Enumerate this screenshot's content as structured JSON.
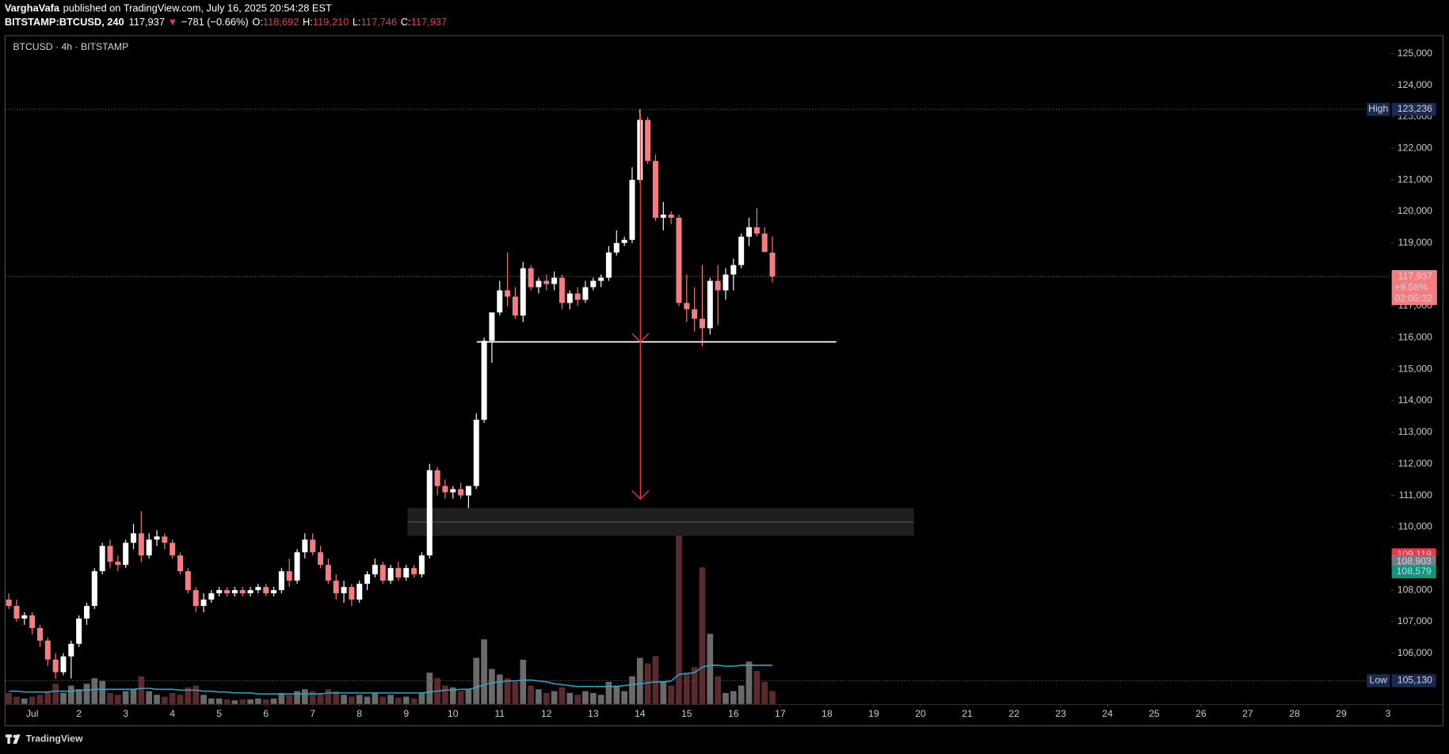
{
  "header": {
    "author": "VarghaVafa",
    "published": "published on TradingView.com, July 16, 2025 20:54:28 EST",
    "symbol": "BITSTAMP:BTCUSD, 240",
    "last": "117,937",
    "arrow": "▼",
    "change": "−781 (−0.66%)",
    "ohlc": [
      {
        "key": "O:",
        "value": "118,692"
      },
      {
        "key": "H:",
        "value": "119,210"
      },
      {
        "key": "L:",
        "value": "117,746"
      },
      {
        "key": "C:",
        "value": "117,937"
      }
    ]
  },
  "footer": {
    "brand": "TradingView"
  },
  "chart_data": {
    "type": "candlestick",
    "title": "BTCUSD · 4h · BITSTAMP",
    "up_color": "#ffffff",
    "down_color": "#f77c80",
    "volume_up_color": "#6a6a6a",
    "volume_down_color": "#5a2a2e",
    "volume_ma_color": "#26a9cf",
    "grid": false,
    "xlim": [
      0.43,
      30.06
    ],
    "ylim": [
      104390,
      125585
    ],
    "xticks": [
      {
        "value": 1,
        "label": "Jul"
      },
      2,
      3,
      4,
      5,
      6,
      7,
      8,
      9,
      10,
      11,
      12,
      13,
      14,
      15,
      16,
      17,
      18,
      19,
      20,
      21,
      22,
      23,
      24,
      25,
      26,
      27,
      28,
      29,
      {
        "value": 30,
        "label": "3"
      }
    ],
    "yticks": [
      {
        "value": 106000,
        "label": "106,000"
      },
      {
        "value": 107000,
        "label": "107,000"
      },
      {
        "value": 108000,
        "label": "108,000"
      },
      {
        "value": 109000,
        "label": "109,000"
      },
      {
        "value": 110000,
        "label": "110,000"
      },
      {
        "value": 111000,
        "label": "111,000"
      },
      {
        "value": 112000,
        "label": "112,000"
      },
      {
        "value": 113000,
        "label": "113,000"
      },
      {
        "value": 114000,
        "label": "114,000"
      },
      {
        "value": 115000,
        "label": "115,000"
      },
      {
        "value": 116000,
        "label": "116,000"
      },
      {
        "value": 117000,
        "label": "117,000"
      },
      {
        "value": 118000,
        "label": "118,000"
      },
      {
        "value": 119000,
        "label": "119,000"
      },
      {
        "value": 120000,
        "label": "120,000"
      },
      {
        "value": 121000,
        "label": "121,000"
      },
      {
        "value": 122000,
        "label": "122,000"
      },
      {
        "value": 123000,
        "label": "123,000"
      },
      {
        "value": 124000,
        "label": "124,000"
      },
      {
        "value": 125000,
        "label": "125,000"
      }
    ],
    "x": [
      0.5,
      0.667,
      0.833,
      1,
      1.167,
      1.333,
      1.5,
      1.667,
      1.833,
      2,
      2.167,
      2.333,
      2.5,
      2.667,
      2.833,
      3,
      3.167,
      3.333,
      3.5,
      3.667,
      3.833,
      4,
      4.167,
      4.333,
      4.5,
      4.667,
      4.833,
      5,
      5.167,
      5.333,
      5.5,
      5.667,
      5.833,
      6,
      6.167,
      6.333,
      6.5,
      6.667,
      6.833,
      7,
      7.167,
      7.333,
      7.5,
      7.667,
      7.833,
      8,
      8.167,
      8.333,
      8.5,
      8.667,
      8.833,
      9,
      9.167,
      9.333,
      9.5,
      9.667,
      9.833,
      10,
      10.167,
      10.333,
      10.5,
      10.667,
      10.833,
      11,
      11.167,
      11.333,
      11.5,
      11.667,
      11.833,
      12,
      12.167,
      12.333,
      12.5,
      12.667,
      12.833,
      13,
      13.167,
      13.333,
      13.5,
      13.667,
      13.833,
      14,
      14.167,
      14.333,
      14.5,
      14.667,
      14.833,
      15,
      15.167,
      15.333,
      15.5,
      15.667,
      15.833,
      16,
      16.167,
      16.333,
      16.5,
      16.667,
      16.833
    ],
    "open": [
      107700,
      107500,
      107100,
      107200,
      106800,
      106400,
      105800,
      105400,
      105900,
      106300,
      107100,
      107500,
      108600,
      109400,
      108900,
      108800,
      109500,
      109800,
      109100,
      109600,
      109700,
      109500,
      109100,
      108600,
      108000,
      107500,
      107700,
      107900,
      108000,
      107900,
      108000,
      107900,
      108000,
      108100,
      107900,
      108000,
      108600,
      108300,
      109200,
      109600,
      109200,
      108800,
      108300,
      107900,
      108100,
      107700,
      108200,
      108500,
      108800,
      108300,
      108700,
      108400,
      108700,
      108500,
      109100,
      111800,
      111300,
      111100,
      111200,
      111000,
      111300,
      113400,
      115900,
      116800,
      117500,
      117300,
      116700,
      118200,
      117600,
      117800,
      117700,
      117900,
      117100,
      117400,
      117200,
      117600,
      117800,
      117900,
      118700,
      119000,
      119100,
      121000,
      122900,
      121600,
      119800,
      119900,
      119800,
      117100,
      116900,
      116600,
      116300,
      117800,
      117500,
      118000,
      118300,
      119200,
      119500,
      119300,
      118692
    ],
    "high": [
      107900,
      107700,
      107300,
      107300,
      106900,
      106500,
      106000,
      106000,
      106400,
      107200,
      107600,
      108700,
      109500,
      109600,
      109100,
      109600,
      110100,
      110500,
      109800,
      109900,
      109800,
      109600,
      109200,
      108700,
      108100,
      107900,
      108000,
      108100,
      108100,
      108100,
      108100,
      108100,
      108200,
      108200,
      108100,
      108700,
      109000,
      109300,
      109800,
      109800,
      109400,
      109000,
      108500,
      108300,
      108200,
      108300,
      108600,
      109000,
      108900,
      108800,
      108900,
      108800,
      108800,
      109200,
      112000,
      111900,
      111500,
      111300,
      111400,
      111300,
      113600,
      116000,
      116800,
      117800,
      118700,
      117600,
      118400,
      118300,
      117900,
      118000,
      118100,
      118000,
      117500,
      117600,
      117800,
      117900,
      118000,
      118900,
      119400,
      119200,
      121400,
      123236,
      123000,
      121800,
      120300,
      120000,
      119900,
      118000,
      117600,
      118300,
      117900,
      118300,
      118200,
      118500,
      119300,
      119800,
      120100,
      119500,
      119210
    ],
    "low": [
      107400,
      107000,
      106900,
      106600,
      106200,
      105600,
      105200,
      105300,
      105200,
      106200,
      106900,
      107400,
      108500,
      108700,
      108600,
      108700,
      109300,
      108900,
      109000,
      109400,
      109300,
      109000,
      108500,
      107900,
      107300,
      107300,
      107600,
      107800,
      107800,
      107800,
      107800,
      107800,
      107900,
      107800,
      107800,
      107900,
      108100,
      108200,
      109000,
      109100,
      108700,
      108200,
      107700,
      107600,
      107500,
      107600,
      108000,
      108400,
      108200,
      108200,
      108300,
      108300,
      108400,
      108400,
      109000,
      111000,
      110900,
      110900,
      110900,
      110600,
      111200,
      113300,
      115200,
      116700,
      117000,
      116600,
      116500,
      117500,
      117400,
      117500,
      117500,
      116900,
      116900,
      117000,
      117100,
      117500,
      117600,
      117800,
      118600,
      118900,
      119000,
      120900,
      121500,
      119700,
      119400,
      119600,
      117000,
      116500,
      116200,
      115730,
      116100,
      116400,
      117200,
      117500,
      118200,
      118900,
      119200,
      118700,
      117746
    ],
    "close": [
      107500,
      107100,
      107200,
      106800,
      106400,
      105800,
      105400,
      105900,
      106300,
      107100,
      107500,
      108600,
      109400,
      108900,
      108800,
      109500,
      109800,
      109100,
      109600,
      109700,
      109500,
      109100,
      108600,
      108000,
      107500,
      107700,
      107900,
      108000,
      107900,
      108000,
      107900,
      108000,
      108100,
      107900,
      108000,
      108600,
      108300,
      109200,
      109600,
      109200,
      108800,
      108300,
      107900,
      108100,
      107700,
      108200,
      108500,
      108800,
      108300,
      108700,
      108400,
      108700,
      108500,
      109100,
      111800,
      111300,
      111100,
      111200,
      111000,
      111300,
      113400,
      115900,
      116800,
      117500,
      117300,
      116700,
      118200,
      117600,
      117800,
      117700,
      117900,
      117100,
      117400,
      117200,
      117600,
      117800,
      117900,
      118700,
      119000,
      119100,
      121000,
      122900,
      121600,
      119800,
      119900,
      119800,
      117100,
      116900,
      116600,
      116300,
      117800,
      117500,
      118000,
      118300,
      119200,
      119500,
      119300,
      118718,
      117937
    ],
    "volume": [
      12,
      8,
      6,
      8,
      10,
      14,
      22,
      12,
      20,
      16,
      22,
      28,
      25,
      12,
      10,
      14,
      16,
      30,
      14,
      10,
      8,
      12,
      10,
      18,
      20,
      10,
      6,
      6,
      5,
      4,
      5,
      5,
      6,
      5,
      6,
      12,
      10,
      14,
      16,
      14,
      12,
      16,
      14,
      10,
      8,
      10,
      8,
      12,
      8,
      10,
      7,
      8,
      6,
      12,
      34,
      28,
      20,
      18,
      14,
      16,
      50,
      70,
      38,
      32,
      28,
      24,
      48,
      20,
      16,
      12,
      14,
      18,
      12,
      10,
      14,
      12,
      10,
      24,
      20,
      14,
      30,
      50,
      44,
      52,
      24,
      20,
      182,
      34,
      40,
      148,
      76,
      30,
      12,
      14,
      20,
      46,
      36,
      24,
      14
    ],
    "volume_ma": [
      14,
      14,
      13,
      13,
      13,
      13,
      14,
      14,
      14,
      15,
      15,
      16,
      16,
      16,
      16,
      16,
      16,
      17,
      17,
      16,
      16,
      16,
      15,
      15,
      15,
      14,
      14,
      13,
      13,
      12,
      12,
      12,
      11,
      11,
      11,
      11,
      11,
      11,
      11,
      11,
      11,
      12,
      12,
      12,
      12,
      12,
      12,
      12,
      12,
      12,
      12,
      12,
      12,
      12,
      13,
      14,
      15,
      15,
      16,
      16,
      18,
      21,
      23,
      24,
      25,
      25,
      26,
      26,
      25,
      24,
      22,
      21,
      20,
      19,
      19,
      19,
      19,
      19,
      19,
      20,
      21,
      22,
      23,
      24,
      24,
      25,
      32,
      33,
      34,
      40,
      42,
      42,
      41,
      41,
      42,
      42,
      42,
      42,
      42
    ],
    "price_labels": [
      {
        "value": 123236,
        "label": "123,236",
        "tag": "High",
        "color": "#1b2a52"
      },
      {
        "value": 105130,
        "label": "105,130",
        "tag": "Low",
        "color": "#1b2a52"
      }
    ],
    "current_price": {
      "value": 117937,
      "label": "117,937",
      "change": "+9.58%",
      "countdown": "02:05:32",
      "color": "#f77c80"
    },
    "indicator_labels": [
      {
        "value": 109119,
        "label": "109,119",
        "color": "#f23645"
      },
      {
        "value": 108903,
        "label": "108,903",
        "color": "#787b86"
      },
      {
        "value": 108579,
        "label": "108,579",
        "color": "#089981"
      }
    ],
    "drawings": {
      "hline": {
        "price": 115867,
        "x1": 10.51,
        "x2": 18.2,
        "color": "#ffffff"
      },
      "arrow": {
        "x": 14.01,
        "y1": 123100,
        "y2": 110890,
        "color": "#f23645"
      },
      "zone": {
        "x1": 9.03,
        "x2": 19.86,
        "y1": 110600,
        "y2": 109720,
        "mid": 110160
      }
    }
  }
}
